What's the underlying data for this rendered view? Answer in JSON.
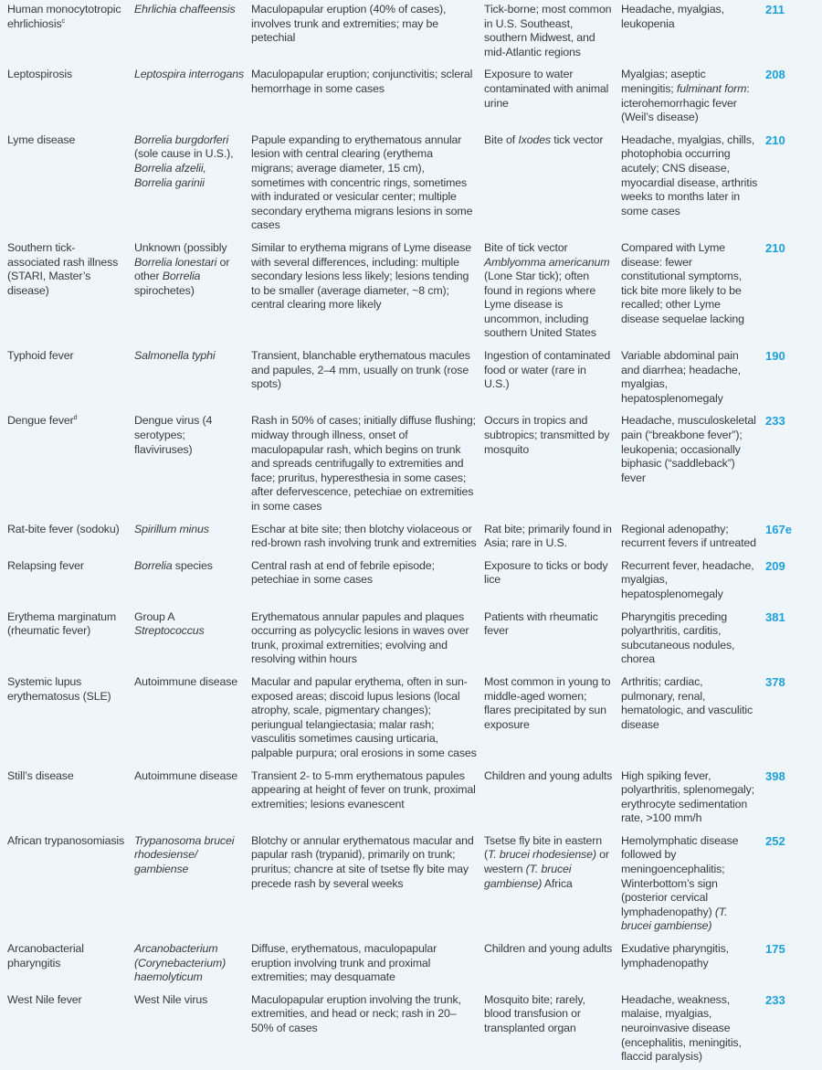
{
  "colors": {
    "background": "#eef6fc",
    "text": "#3a3a3a",
    "reference": "#1ea0dc"
  },
  "rows": [
    {
      "cells": [
        [
          {
            "t": "Human monocytotropic ehrlichiosis"
          },
          {
            "t": "c",
            "sup": true
          }
        ],
        [
          {
            "t": "Ehrlichia chaffeensis",
            "i": true
          }
        ],
        [
          {
            "t": "Maculopapular eruption (40% of cases), involves trunk and extremities; may be petechial"
          }
        ],
        [
          {
            "t": "Tick-borne; most common in U.S. Southeast, southern Midwest, and mid-Atlantic regions"
          }
        ],
        [
          {
            "t": "Headache, myalgias, leukopenia"
          }
        ]
      ],
      "ref": "211"
    },
    {
      "cells": [
        [
          {
            "t": "Leptospirosis"
          }
        ],
        [
          {
            "t": "Leptospira interrogans",
            "i": true
          }
        ],
        [
          {
            "t": "Maculopapular eruption; conjunctivitis; scleral hemorrhage in some cases"
          }
        ],
        [
          {
            "t": "Exposure to water contaminated with animal urine"
          }
        ],
        [
          {
            "t": "Myalgias; aseptic meningitis; "
          },
          {
            "t": "fulminant form",
            "i": true
          },
          {
            "t": ": icterohemorrhagic fever (Weil’s disease)"
          }
        ]
      ],
      "ref": "208"
    },
    {
      "cells": [
        [
          {
            "t": "Lyme disease"
          }
        ],
        [
          {
            "t": "Borrelia burgdorferi",
            "i": true
          },
          {
            "t": " (sole cause in U.S.), "
          },
          {
            "t": "Borrelia afzelii, Borrelia garinii",
            "i": true
          }
        ],
        [
          {
            "t": "Papule expanding to erythematous annular lesion with central clearing (erythema migrans; average diameter, 15 cm), sometimes with concentric rings, sometimes with indurated or vesicular center; multiple secondary erythema migrans lesions in some cases"
          }
        ],
        [
          {
            "t": "Bite of "
          },
          {
            "t": "Ixodes",
            "i": true
          },
          {
            "t": " tick vector"
          }
        ],
        [
          {
            "t": "Headache, myalgias, chills, photophobia occurring acutely; CNS disease, myocardial disease, arthritis weeks to months later in some cases"
          }
        ]
      ],
      "ref": "210"
    },
    {
      "cells": [
        [
          {
            "t": "Southern tick-associated rash illness (STARI, Master’s disease)"
          }
        ],
        [
          {
            "t": "Unknown (possibly "
          },
          {
            "t": "Borrelia lonestari",
            "i": true
          },
          {
            "t": " or other "
          },
          {
            "t": "Borrelia",
            "i": true
          },
          {
            "t": " spirochetes)"
          }
        ],
        [
          {
            "t": "Similar to erythema migrans of Lyme disease with several differences, including: multiple secondary lesions less likely; lesions tending to be smaller (average diameter, ~8 cm); central clearing more likely"
          }
        ],
        [
          {
            "t": "Bite of tick vector "
          },
          {
            "t": "Amblyomma americanum",
            "i": true
          },
          {
            "t": " (Lone Star tick); often found in regions where Lyme disease is uncommon, including southern United States"
          }
        ],
        [
          {
            "t": "Compared with Lyme disease: fewer constitutional symptoms, tick bite more likely to be recalled; other Lyme disease sequelae lacking"
          }
        ]
      ],
      "ref": "210"
    },
    {
      "cells": [
        [
          {
            "t": "Typhoid fever"
          }
        ],
        [
          {
            "t": "Salmonella typhi",
            "i": true
          }
        ],
        [
          {
            "t": "Transient, blanchable erythematous macules and papules, 2–4 mm, usually on trunk (rose spots)"
          }
        ],
        [
          {
            "t": "Ingestion of contaminated food or water (rare in U.S.)"
          }
        ],
        [
          {
            "t": "Variable abdominal pain and diarrhea; headache, myalgias, hepatosplenomegaly"
          }
        ]
      ],
      "ref": "190"
    },
    {
      "cells": [
        [
          {
            "t": "Dengue fever"
          },
          {
            "t": "d",
            "sup": true
          }
        ],
        [
          {
            "t": "Dengue virus (4 serotypes; flaviviruses)"
          }
        ],
        [
          {
            "t": "Rash in 50% of cases; initially diffuse flushing; midway through illness, onset of maculopapular rash, which begins on trunk and spreads centrifugally to extremities and face; pruritus, hyperesthesia in some cases; after defervescence, petechiae on extremities in some cases"
          }
        ],
        [
          {
            "t": "Occurs in tropics and subtropics; transmitted by mosquito"
          }
        ],
        [
          {
            "t": "Headache, musculoskeletal pain (“breakbone fever”); leukopenia; occasionally biphasic (“saddleback”) fever"
          }
        ]
      ],
      "ref": "233"
    },
    {
      "cells": [
        [
          {
            "t": "Rat-bite fever (sodoku)"
          }
        ],
        [
          {
            "t": "Spirillum minus",
            "i": true
          }
        ],
        [
          {
            "t": "Eschar at bite site; then blotchy violaceous or red-brown rash involving trunk and extremities"
          }
        ],
        [
          {
            "t": "Rat bite; primarily found in Asia; rare in U.S."
          }
        ],
        [
          {
            "t": "Regional adenopathy; recurrent fevers if untreated"
          }
        ]
      ],
      "ref": "167e"
    },
    {
      "cells": [
        [
          {
            "t": "Relapsing fever"
          }
        ],
        [
          {
            "t": "Borrelia",
            "i": true
          },
          {
            "t": " species"
          }
        ],
        [
          {
            "t": "Central rash at end of febrile episode; petechiae in some cases"
          }
        ],
        [
          {
            "t": "Exposure to ticks or body lice"
          }
        ],
        [
          {
            "t": "Recurrent fever, headache, myalgias, hepatosplenomegaly"
          }
        ]
      ],
      "ref": "209"
    },
    {
      "cells": [
        [
          {
            "t": "Erythema marginatum (rheumatic fever)"
          }
        ],
        [
          {
            "t": "Group A "
          },
          {
            "t": "Streptococcus",
            "i": true
          }
        ],
        [
          {
            "t": "Erythematous annular papules and plaques occurring as polycyclic lesions in waves over trunk, proximal extremities; evolving and resolving within hours"
          }
        ],
        [
          {
            "t": "Patients with rheumatic fever"
          }
        ],
        [
          {
            "t": "Pharyngitis preceding polyarthritis, carditis, subcutaneous nodules, chorea"
          }
        ]
      ],
      "ref": "381"
    },
    {
      "cells": [
        [
          {
            "t": "Systemic lupus erythematosus (SLE)"
          }
        ],
        [
          {
            "t": "Autoimmune disease"
          }
        ],
        [
          {
            "t": "Macular and papular erythema, often in sun-exposed areas; discoid lupus lesions (local atrophy, scale, pigmentary changes); periungual telangiectasia; malar rash; vasculitis sometimes causing urticaria, palpable purpura; oral erosions in some cases"
          }
        ],
        [
          {
            "t": "Most common in young to middle-aged women; flares precipitated by sun exposure"
          }
        ],
        [
          {
            "t": "Arthritis; cardiac, pulmonary, renal, hematologic, and vasculitic disease"
          }
        ]
      ],
      "ref": "378"
    },
    {
      "cells": [
        [
          {
            "t": "Still’s disease"
          }
        ],
        [
          {
            "t": "Autoimmune disease"
          }
        ],
        [
          {
            "t": "Transient 2- to 5-mm erythematous papules appearing at height of fever on trunk, proximal extremities; lesions evanescent"
          }
        ],
        [
          {
            "t": "Children and young adults"
          }
        ],
        [
          {
            "t": "High spiking fever, polyarthritis, splenomegaly; erythrocyte sedimentation rate, >100 mm/h"
          }
        ]
      ],
      "ref": "398"
    },
    {
      "cells": [
        [
          {
            "t": "African trypanosomiasis"
          }
        ],
        [
          {
            "t": "Trypanosoma brucei rhodesiense/ gambiense",
            "i": true
          }
        ],
        [
          {
            "t": "Blotchy or annular erythematous macular and papular rash (trypanid), primarily on trunk; pruritus; chancre at site of tsetse fly bite may precede rash by several weeks"
          }
        ],
        [
          {
            "t": "Tsetse fly bite in eastern ("
          },
          {
            "t": "T. brucei rhodesiense)",
            "i": true
          },
          {
            "t": " or western "
          },
          {
            "t": "(T. brucei gambiense)",
            "i": true
          },
          {
            "t": " Africa"
          }
        ],
        [
          {
            "t": "Hemolymphatic disease followed by meningoencephalitis; Winterbottom’s sign (posterior cervical lymphadenopathy) "
          },
          {
            "t": "(T. brucei gambiense)",
            "i": true
          }
        ]
      ],
      "ref": "252"
    },
    {
      "cells": [
        [
          {
            "t": "Arcanobacterial pharyngitis"
          }
        ],
        [
          {
            "t": "Arcanobacterium (Corynebacterium) haemolyticum",
            "i": true
          }
        ],
        [
          {
            "t": "Diffuse, erythematous, maculopapular eruption involving trunk and proximal extremities; may desquamate"
          }
        ],
        [
          {
            "t": "Children and young adults"
          }
        ],
        [
          {
            "t": "Exudative pharyngitis, lymphadenopathy"
          }
        ]
      ],
      "ref": "175"
    },
    {
      "cells": [
        [
          {
            "t": "West Nile fever"
          }
        ],
        [
          {
            "t": "West Nile virus"
          }
        ],
        [
          {
            "t": "Maculopapular eruption involving the trunk, extremities, and head or neck; rash in 20–50% of cases"
          }
        ],
        [
          {
            "t": "Mosquito bite; rarely, blood transfusion or transplanted organ"
          }
        ],
        [
          {
            "t": "Headache, weakness, malaise, myalgias, neuroinvasive disease (encephalitis, meningitis, flaccid paralysis)"
          }
        ]
      ],
      "ref": "233"
    }
  ]
}
